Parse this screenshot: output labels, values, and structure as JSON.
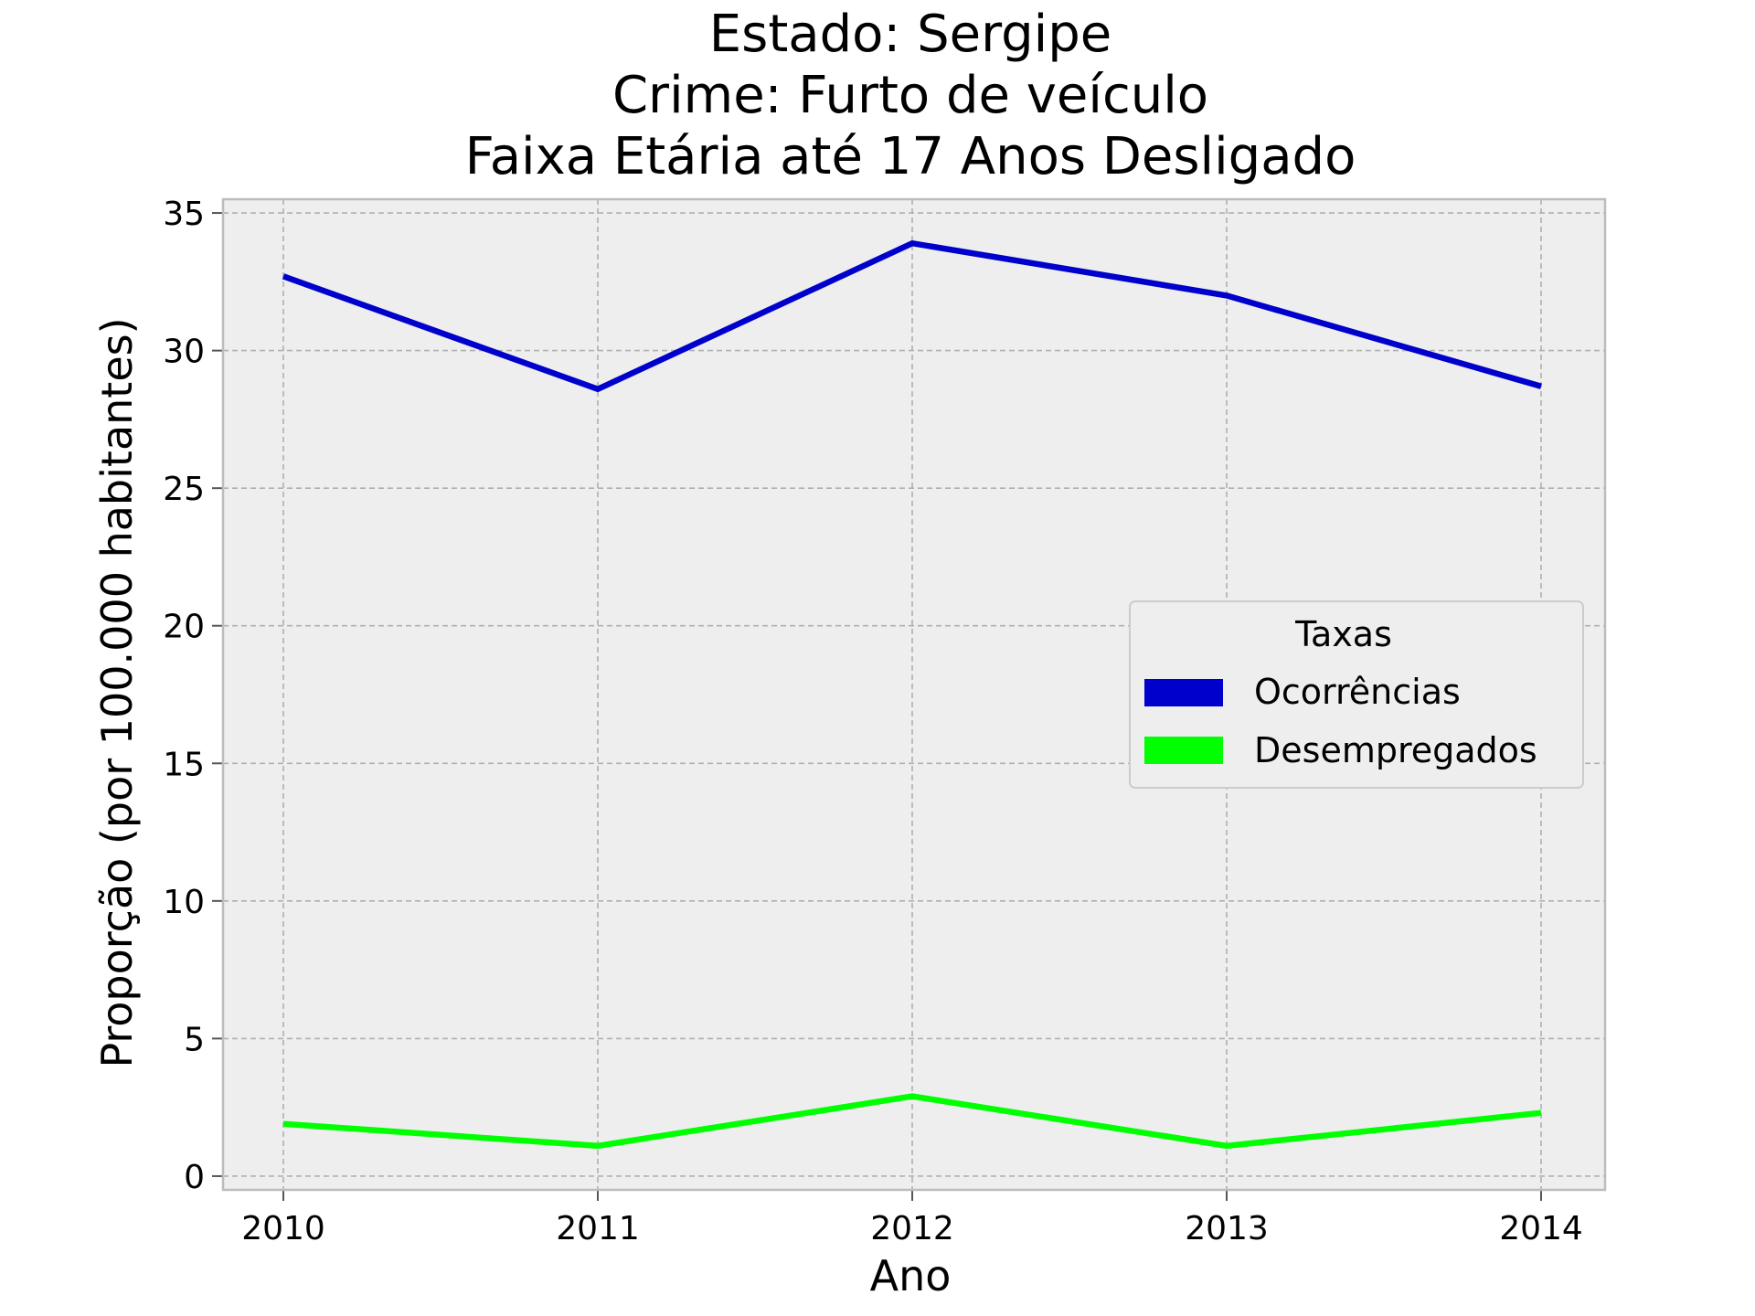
{
  "chart_data": {
    "type": "line",
    "title": [
      "Estado: Sergipe",
      "Crime: Furto de veículo",
      "Faixa Etária até 17 Anos   Desligado"
    ],
    "xlabel": "Ano",
    "ylabel": "Proporção (por 100.000 habitantes)",
    "x": [
      "2010",
      "2011",
      "2012",
      "2013",
      "2014"
    ],
    "yticks": [
      "0",
      "5",
      "10",
      "15",
      "20",
      "25",
      "30",
      "35"
    ],
    "ylim": [
      -0.5,
      35.5
    ],
    "grid": true,
    "legend": {
      "title": "Taxas",
      "placement": "center-right"
    },
    "series": [
      {
        "name": "Ocorrências",
        "color": "#0000cc",
        "values": [
          32.7,
          28.6,
          33.9,
          32.0,
          28.7
        ]
      },
      {
        "name": "Desempregados",
        "color": "#00ff00",
        "values": [
          1.9,
          1.1,
          2.9,
          1.1,
          2.3
        ]
      }
    ],
    "colors": {
      "plot_background": "#eeeeee",
      "frame": "#bcbcbc",
      "grid": "#b0b0b0"
    }
  }
}
